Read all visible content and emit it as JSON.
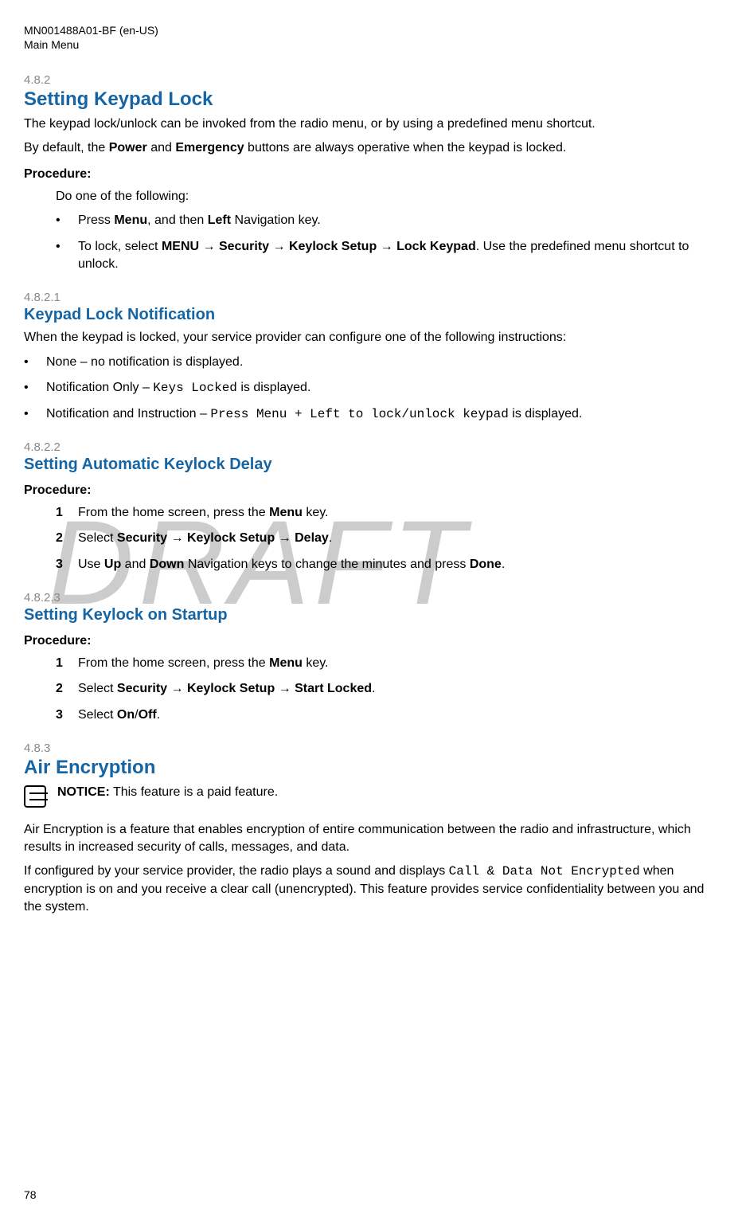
{
  "header": {
    "doc_id": "MN001488A01-BF (en-US)",
    "chapter": "Main Menu"
  },
  "watermark": "DRAFT",
  "page_number": "78",
  "sections": {
    "s482": {
      "num": "4.8.2",
      "title": "Setting Keypad Lock",
      "intro1_pre": "The keypad lock/unlock can be invoked from the radio menu, or by using a predefined menu shortcut.",
      "intro2_pre": "By default, the ",
      "intro2_b1": "Power",
      "intro2_mid": " and ",
      "intro2_b2": "Emergency",
      "intro2_post": " buttons are always operative when the keypad is locked.",
      "proc_label": "Procedure:",
      "do_one": "Do one of the following:",
      "bullet1_pre": "Press ",
      "bullet1_b1": "Menu",
      "bullet1_mid": ", and then ",
      "bullet1_b2": "Left",
      "bullet1_post": " Navigation key.",
      "bullet2_pre": "To lock, select ",
      "bullet2_b1": "MENU",
      "bullet2_arrow1": " → ",
      "bullet2_b2": "Security",
      "bullet2_arrow2": " → ",
      "bullet2_b3": "Keylock Setup",
      "bullet2_arrow3": " → ",
      "bullet2_b4": "Lock Keypad",
      "bullet2_post": ". Use the predefined menu shortcut to unlock."
    },
    "s4821": {
      "num": "4.8.2.1",
      "title": "Keypad Lock Notification",
      "intro": "When the keypad is locked, your service provider can configure one of the following instructions:",
      "b1": "None – no notification is displayed.",
      "b2_pre": "Notification Only – ",
      "b2_mono": "Keys Locked",
      "b2_post": " is displayed.",
      "b3_pre": "Notification and Instruction – ",
      "b3_mono": "Press Menu + Left to lock/unlock keypad",
      "b3_post": " is displayed."
    },
    "s4822": {
      "num": "4.8.2.2",
      "title": "Setting Automatic Keylock Delay",
      "proc_label": "Procedure:",
      "s1_num": "1",
      "s1_pre": "From the home screen, press the ",
      "s1_b": "Menu",
      "s1_post": " key.",
      "s2_num": "2",
      "s2_pre": "Select ",
      "s2_b1": "Security",
      "s2_a1": " → ",
      "s2_b2": "Keylock Setup",
      "s2_a2": " → ",
      "s2_b3": "Delay",
      "s2_post": ".",
      "s3_num": "3",
      "s3_pre": "Use ",
      "s3_b1": "Up",
      "s3_mid1": " and ",
      "s3_b2": "Down",
      "s3_mid2": " Navigation keys to change the minutes and press ",
      "s3_b3": "Done",
      "s3_post": "."
    },
    "s4823": {
      "num": "4.8.2.3",
      "title": "Setting Keylock on Startup",
      "proc_label": "Procedure:",
      "s1_num": "1",
      "s1_pre": "From the home screen, press the ",
      "s1_b": "Menu",
      "s1_post": " key.",
      "s2_num": "2",
      "s2_pre": "Select ",
      "s2_b1": "Security",
      "s2_a1": " → ",
      "s2_b2": "Keylock Setup",
      "s2_a2": " → ",
      "s2_b3": "Start Locked",
      "s2_post": ".",
      "s3_num": "3",
      "s3_pre": "Select ",
      "s3_b1": "On",
      "s3_mid": "/",
      "s3_b2": "Off",
      "s3_post": "."
    },
    "s483": {
      "num": "4.8.3",
      "title": "Air Encryption",
      "notice_b": "NOTICE:",
      "notice_post": " This feature is a paid feature.",
      "p1": "Air Encryption is a feature that enables encryption of entire communication between the radio and infrastructure, which results in increased security of calls, messages, and data.",
      "p2_pre": "If configured by your service provider, the radio plays a sound and displays ",
      "p2_mono": "Call & Data Not Encrypted",
      "p2_post": " when encryption is on and you receive a clear call (unencrypted). This feature provides service confidentiality between you and the system."
    }
  }
}
